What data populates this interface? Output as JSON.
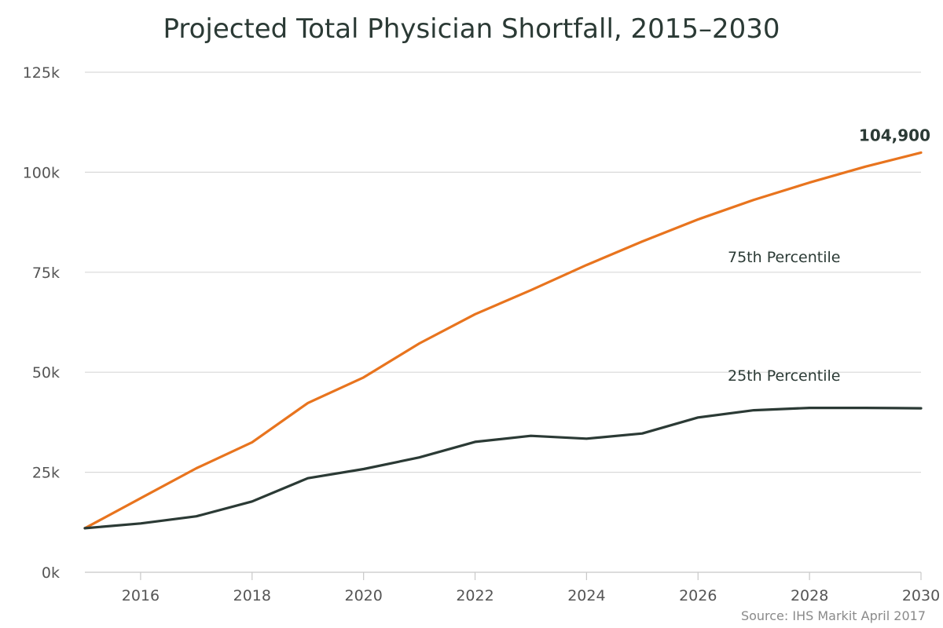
{
  "chart_data": {
    "type": "line",
    "title": "Projected Total Physician Shortfall, 2015–2030",
    "source": "Source: IHS Markit April 2017",
    "xlabel": "",
    "ylabel": "",
    "x": [
      2015,
      2016,
      2017,
      2018,
      2019,
      2020,
      2021,
      2022,
      2023,
      2024,
      2025,
      2026,
      2027,
      2028,
      2029,
      2030
    ],
    "xlim": [
      2015,
      2030
    ],
    "ylim": [
      0,
      125000
    ],
    "x_ticks": [
      {
        "value": 2016,
        "label": "2016"
      },
      {
        "value": 2018,
        "label": "2018"
      },
      {
        "value": 2020,
        "label": "2020"
      },
      {
        "value": 2022,
        "label": "2022"
      },
      {
        "value": 2024,
        "label": "2024"
      },
      {
        "value": 2026,
        "label": "2026"
      },
      {
        "value": 2028,
        "label": "2028"
      },
      {
        "value": 2030,
        "label": "2030"
      }
    ],
    "y_ticks": [
      {
        "value": 0,
        "label": "0k"
      },
      {
        "value": 25000,
        "label": "25k"
      },
      {
        "value": 50000,
        "label": "50k"
      },
      {
        "value": 75000,
        "label": "75k"
      },
      {
        "value": 100000,
        "label": "100k"
      },
      {
        "value": 125000,
        "label": "125k"
      }
    ],
    "grid": true,
    "series": [
      {
        "name": "75th Percentile",
        "color": "#e8741e",
        "values": [
          11000,
          18500,
          26000,
          32500,
          42300,
          48700,
          57200,
          64500,
          70500,
          76800,
          82700,
          88200,
          93100,
          97400,
          101400,
          104900
        ],
        "end_label": "104,900"
      },
      {
        "name": "25th Percentile",
        "color": "#2b3a35",
        "values": [
          11000,
          12200,
          14000,
          17700,
          23500,
          25800,
          28700,
          32600,
          34100,
          33400,
          34700,
          38700,
          40500,
          41100,
          41100,
          41000
        ]
      }
    ]
  }
}
